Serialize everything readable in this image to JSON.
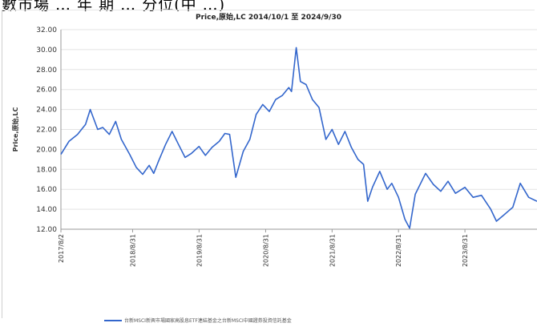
{
  "top_text": "數市場 … 年 期 … 分位(中 …)",
  "chart_data": {
    "type": "line",
    "title": "Price,原始,LC 2014/10/1 至 2024/9/30",
    "ylabel": "Price,原始,LC",
    "xlabel": "",
    "ylim": [
      12,
      32
    ],
    "yticks": [
      "12.00",
      "14.00",
      "16.00",
      "18.00",
      "20.00",
      "22.00",
      "24.00",
      "26.00",
      "28.00",
      "30.00",
      "32.00"
    ],
    "xticks": [
      "2017/8/2",
      "2018/8/31",
      "2019/8/31",
      "2020/8/31",
      "2021/8/31",
      "2022/8/31",
      "2023/8/31"
    ],
    "grid": "horizontal",
    "legend_position": "bottom",
    "color": "#3366cc",
    "series": [
      {
        "name": "台新MSCI新興市場國家高股息ETF連結基金之台新MSCI中國證券投資信託基金",
        "x": [
          "2017-08-02",
          "2017-09-15",
          "2017-11-01",
          "2017-12-15",
          "2018-01-10",
          "2018-02-20",
          "2018-03-20",
          "2018-04-25",
          "2018-05-30",
          "2018-06-30",
          "2018-08-15",
          "2018-09-20",
          "2018-10-25",
          "2018-11-30",
          "2018-12-25",
          "2019-01-20",
          "2019-02-28",
          "2019-04-05",
          "2019-05-10",
          "2019-06-15",
          "2019-07-20",
          "2019-08-31",
          "2019-10-05",
          "2019-11-10",
          "2019-12-20",
          "2020-01-20",
          "2020-02-15",
          "2020-03-20",
          "2020-04-30",
          "2020-06-05",
          "2020-07-10",
          "2020-08-15",
          "2020-09-20",
          "2020-10-25",
          "2020-11-30",
          "2021-01-05",
          "2021-01-20",
          "2021-02-15",
          "2021-03-10",
          "2021-04-10",
          "2021-05-15",
          "2021-06-20",
          "2021-07-28",
          "2021-08-31",
          "2021-10-05",
          "2021-11-10",
          "2021-12-15",
          "2022-01-20",
          "2022-02-20",
          "2022-03-15",
          "2022-04-10",
          "2022-05-20",
          "2022-06-30",
          "2022-07-25",
          "2022-08-31",
          "2022-10-05",
          "2022-10-31",
          "2022-12-01",
          "2023-01-27",
          "2023-03-10",
          "2023-04-20",
          "2023-05-30",
          "2023-07-10",
          "2023-08-31",
          "2023-10-15",
          "2023-11-30",
          "2024-01-20",
          "2024-02-20",
          "2024-03-30",
          "2024-05-20",
          "2024-06-30",
          "2024-08-15",
          "2024-09-30"
        ],
        "y": [
          19.5,
          20.8,
          21.5,
          22.5,
          24.0,
          22.0,
          22.2,
          21.5,
          22.8,
          21.0,
          19.5,
          18.2,
          17.5,
          18.4,
          17.6,
          18.8,
          20.5,
          21.8,
          20.5,
          19.2,
          19.6,
          20.3,
          19.4,
          20.2,
          20.8,
          21.6,
          21.5,
          17.2,
          19.8,
          21.0,
          23.5,
          24.5,
          23.8,
          25.0,
          25.4,
          26.2,
          25.8,
          30.2,
          26.8,
          26.5,
          25.0,
          24.2,
          21.0,
          22.0,
          20.5,
          21.8,
          20.2,
          19.0,
          18.5,
          14.8,
          16.2,
          17.8,
          16.0,
          16.6,
          15.2,
          13.0,
          12.1,
          15.5,
          17.6,
          16.5,
          15.8,
          16.8,
          15.6,
          16.2,
          15.2,
          15.4,
          14.0,
          12.8,
          13.4,
          14.2,
          16.6,
          15.2,
          14.8
        ]
      }
    ]
  }
}
